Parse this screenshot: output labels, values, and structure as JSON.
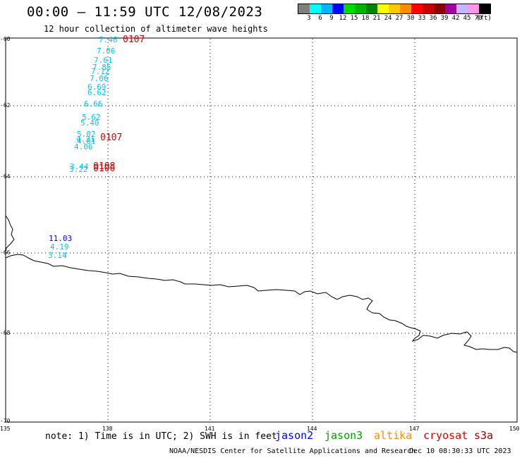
{
  "title": "00:00 — 11:59 UTC 12/08/2023",
  "subtitle": "12 hour collection of altimeter wave heights",
  "legend": {
    "colors": [
      "#7f7f7f",
      "#00ffff",
      "#00b4ff",
      "#0000ff",
      "#00dc00",
      "#00b400",
      "#008200",
      "#ffff00",
      "#ffc800",
      "#ff8c00",
      "#ff0000",
      "#c80000",
      "#8c0000",
      "#a000a0",
      "#c8b4ff",
      "#ff96e6",
      "#000000"
    ],
    "labels": [
      "3",
      "6",
      "9",
      "12",
      "15",
      "18",
      "21",
      "24",
      "27",
      "30",
      "33",
      "36",
      "39",
      "42",
      "45",
      "70",
      "(ft)"
    ]
  },
  "axes": {
    "y_labels": [
      "-60",
      "-62",
      "-64",
      "-66",
      "-68",
      "-70"
    ],
    "x_labels": [
      "135",
      "138",
      "141",
      "144",
      "147",
      "150"
    ]
  },
  "observations": {
    "wave_heights": [
      {
        "text": "7.46",
        "color": "#00c8ff"
      },
      {
        "text": "7.06",
        "color": "#00c8ff"
      },
      {
        "text": "7.61",
        "color": "#00c8ff"
      },
      {
        "text": "7.85",
        "color": "#00c8ff"
      },
      {
        "text": "7.12",
        "color": "#00c8ff"
      },
      {
        "text": "7.06",
        "color": "#00c8ff"
      },
      {
        "text": "6.69",
        "color": "#00c8ff"
      },
      {
        "text": "6.62",
        "color": "#00c8ff"
      },
      {
        "text": "6.66",
        "color": "#00c8ff"
      },
      {
        "text": "5.62",
        "color": "#00c8ff"
      },
      {
        "text": "5.40",
        "color": "#00c8ff"
      },
      {
        "text": "5.02",
        "color": "#00c8ff"
      },
      {
        "text": "4.31",
        "color": "#00c8ff"
      },
      {
        "text": "4.61",
        "color": "#00c8ff"
      },
      {
        "text": "4.06",
        "color": "#00c8ff"
      },
      {
        "text": "3.44",
        "color": "#00c8ff"
      },
      {
        "text": "3.22",
        "color": "#00c8ff"
      },
      {
        "text": "11.03",
        "color": "#0000ff"
      },
      {
        "text": "4.19",
        "color": "#00c8ff"
      },
      {
        "text": "3.14",
        "color": "#00c8ff"
      }
    ],
    "pass_times": [
      "0107",
      "0107",
      "0108",
      "0106"
    ]
  },
  "note": {
    "text": "note: 1) Time is in UTC; 2) SWH is in feet",
    "satellites": [
      {
        "name": "jason2",
        "color": "#0000ff"
      },
      {
        "name": "jason3",
        "color": "#00a000"
      },
      {
        "name": "altika",
        "color": "#ff8c00"
      },
      {
        "name": "cryosat",
        "color": "#e00000"
      },
      {
        "name": "s3a",
        "color": "#a00000"
      }
    ]
  },
  "footer": {
    "credit": "NOAA/NESDIS Center for Satellite Applications and Research",
    "timestamp": "Dec 10 08:30:33 UTC 2023"
  }
}
